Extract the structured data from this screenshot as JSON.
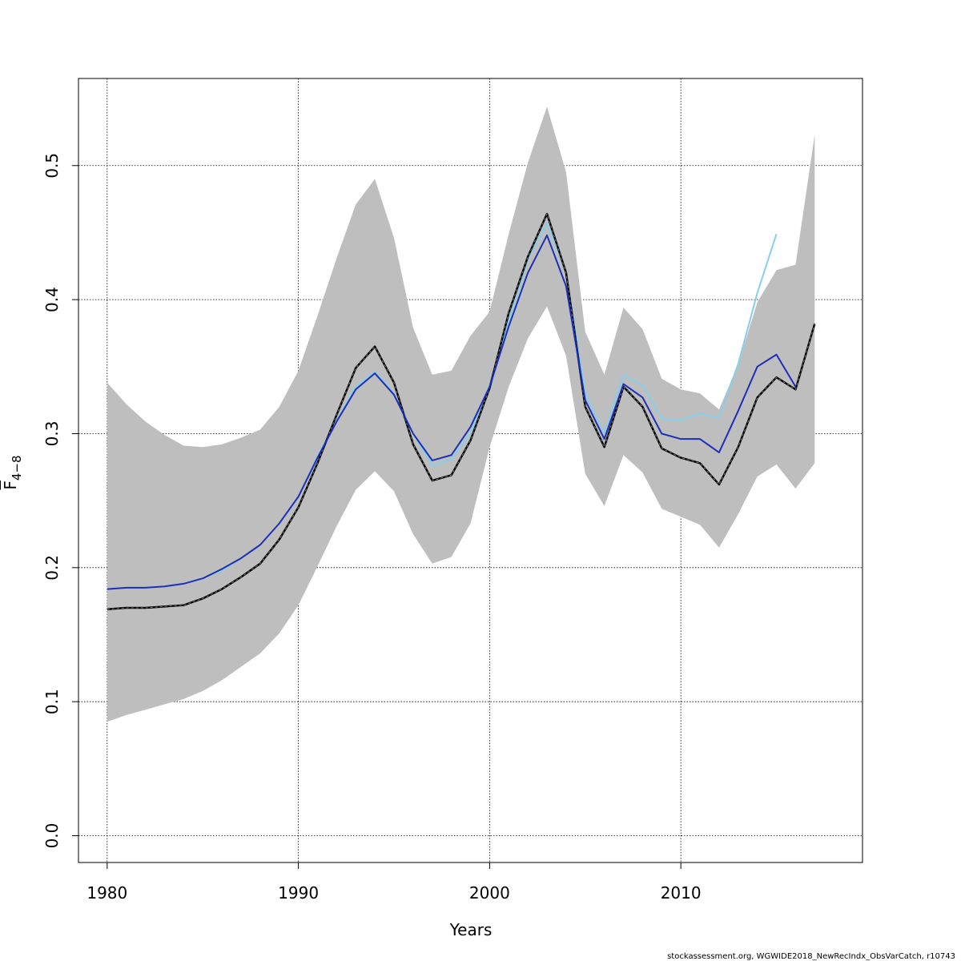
{
  "chart_data": {
    "type": "line",
    "xlabel": "Years",
    "ylabel": "F",
    "ylabel_subscript": "4−8",
    "xlim": [
      1978.5,
      2019.5
    ],
    "ylim": [
      -0.02,
      0.565
    ],
    "x_ticks": [
      1980,
      1990,
      2000,
      2010
    ],
    "x_tick_labels": [
      "1980",
      "1990",
      "2000",
      "2010"
    ],
    "y_ticks": [
      0.0,
      0.1,
      0.2,
      0.3,
      0.4,
      0.5
    ],
    "y_tick_labels": [
      "0.0",
      "0.1",
      "0.2",
      "0.3",
      "0.4",
      "0.5"
    ],
    "grid": true,
    "footnote": "stockassessment.org, WGWIDE2018_NewRecIndx_ObsVarCatch, r10743",
    "band": {
      "color": "#bebebe",
      "x": [
        1980,
        1981,
        1982,
        1983,
        1984,
        1985,
        1986,
        1987,
        1988,
        1989,
        1990,
        1991,
        1992,
        1993,
        1994,
        1995,
        1996,
        1997,
        1998,
        1999,
        2000,
        2001,
        2002,
        2003,
        2004,
        2005,
        2006,
        2007,
        2008,
        2009,
        2010,
        2011,
        2012,
        2013,
        2014,
        2015,
        2016,
        2017
      ],
      "lower": [
        0.085,
        0.09,
        0.094,
        0.098,
        0.102,
        0.108,
        0.116,
        0.126,
        0.136,
        0.151,
        0.172,
        0.201,
        0.231,
        0.258,
        0.272,
        0.257,
        0.225,
        0.203,
        0.208,
        0.233,
        0.29,
        0.335,
        0.371,
        0.395,
        0.358,
        0.27,
        0.246,
        0.284,
        0.271,
        0.244,
        0.238,
        0.232,
        0.215,
        0.24,
        0.268,
        0.277,
        0.259,
        0.278
      ],
      "upper": [
        0.338,
        0.322,
        0.309,
        0.299,
        0.291,
        0.29,
        0.292,
        0.297,
        0.303,
        0.32,
        0.347,
        0.388,
        0.431,
        0.471,
        0.49,
        0.446,
        0.379,
        0.344,
        0.347,
        0.373,
        0.391,
        0.449,
        0.502,
        0.544,
        0.495,
        0.376,
        0.344,
        0.394,
        0.378,
        0.341,
        0.333,
        0.33,
        0.318,
        0.352,
        0.398,
        0.422,
        0.426,
        0.523
      ]
    },
    "series": [
      {
        "color": "#87ceeb",
        "width": 2,
        "dashed": false,
        "x": [
          1980,
          1981,
          1982,
          1983,
          1984,
          1985,
          1986,
          1987,
          1988,
          1989,
          1990,
          1991,
          1992,
          1993,
          1994,
          1995,
          1996,
          1997,
          1998,
          1999,
          2000,
          2001,
          2002,
          2003,
          2004,
          2005,
          2006,
          2007,
          2008,
          2009,
          2010,
          2011,
          2012,
          2013,
          2014,
          2015
        ],
        "values": [
          0.184,
          0.185,
          0.185,
          0.186,
          0.188,
          0.192,
          0.198,
          0.207,
          0.217,
          0.233,
          0.253,
          0.283,
          0.31,
          0.335,
          0.346,
          0.33,
          0.3,
          0.276,
          0.281,
          0.3,
          0.336,
          0.384,
          0.43,
          0.457,
          0.42,
          0.33,
          0.3,
          0.344,
          0.336,
          0.311,
          0.31,
          0.315,
          0.312,
          0.352,
          0.405,
          0.449
        ]
      },
      {
        "color": "#000000",
        "width": 2.5,
        "dashed": true,
        "x": [
          1980,
          1981,
          1982,
          1983,
          1984,
          1985,
          1986,
          1987,
          1988,
          1989,
          1990,
          1991,
          1992,
          1993,
          1994,
          1995,
          1996,
          1997,
          1998,
          1999,
          2000,
          2001,
          2002,
          2003,
          2004,
          2005,
          2006,
          2007,
          2008,
          2009,
          2010,
          2011,
          2012,
          2013,
          2014,
          2015,
          2016,
          2017
        ],
        "values": [
          0.169,
          0.17,
          0.17,
          0.171,
          0.172,
          0.177,
          0.184,
          0.193,
          0.203,
          0.221,
          0.245,
          0.278,
          0.314,
          0.349,
          0.365,
          0.338,
          0.292,
          0.265,
          0.269,
          0.295,
          0.334,
          0.39,
          0.432,
          0.464,
          0.42,
          0.32,
          0.29,
          0.335,
          0.32,
          0.289,
          0.282,
          0.278,
          0.262,
          0.29,
          0.327,
          0.342,
          0.333,
          0.382
        ]
      },
      {
        "color": "#1d2fb8",
        "width": 2,
        "dashed": false,
        "x": [
          1980,
          1981,
          1982,
          1983,
          1984,
          1985,
          1986,
          1987,
          1988,
          1989,
          1990,
          1991,
          1992,
          1993,
          1994,
          1995,
          1996,
          1997,
          1998,
          1999,
          2000,
          2001,
          2002,
          2003,
          2004,
          2005,
          2006,
          2007,
          2008,
          2009,
          2010,
          2011,
          2012,
          2013,
          2014,
          2015,
          2016
        ],
        "values": [
          0.184,
          0.185,
          0.185,
          0.186,
          0.188,
          0.192,
          0.199,
          0.207,
          0.217,
          0.233,
          0.253,
          0.282,
          0.309,
          0.333,
          0.345,
          0.329,
          0.3,
          0.28,
          0.284,
          0.305,
          0.335,
          0.38,
          0.42,
          0.448,
          0.41,
          0.325,
          0.296,
          0.337,
          0.327,
          0.3,
          0.296,
          0.296,
          0.286,
          0.317,
          0.35,
          0.359,
          0.335
        ]
      }
    ]
  }
}
